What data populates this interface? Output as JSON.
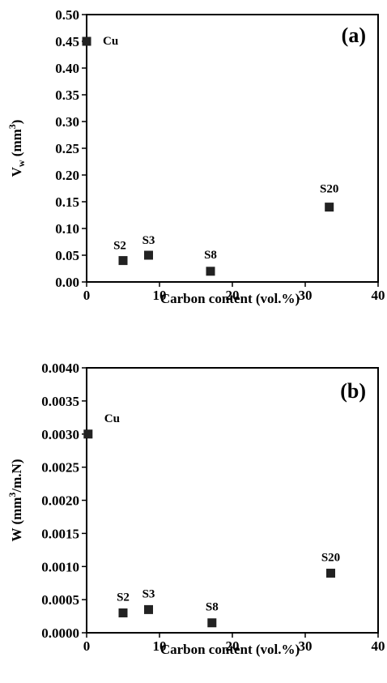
{
  "chart_data": [
    {
      "type": "scatter",
      "panel_label": "(a)",
      "xlabel": "Carbon content (vol.%)",
      "ylabel_main": "V",
      "ylabel_sub": "w",
      "ylabel_rest": " (mm",
      "ylabel_sup": "3",
      "ylabel_close": ")",
      "xlim": [
        0,
        40
      ],
      "ylim": [
        0,
        0.5
      ],
      "xticks": [
        "0",
        "10",
        "20",
        "30",
        "40"
      ],
      "yticks": [
        "0.00",
        "0.05",
        "0.10",
        "0.15",
        "0.20",
        "0.25",
        "0.30",
        "0.35",
        "0.40",
        "0.45",
        "0.50"
      ],
      "marker_color": "#222222",
      "points": [
        {
          "label": "Cu",
          "x": 0,
          "y": 0.45
        },
        {
          "label": "S2",
          "x": 5,
          "y": 0.04
        },
        {
          "label": "S3",
          "x": 8.5,
          "y": 0.05
        },
        {
          "label": "S8",
          "x": 17,
          "y": 0.02
        },
        {
          "label": "S20",
          "x": 33.3,
          "y": 0.14
        }
      ]
    },
    {
      "type": "scatter",
      "panel_label": "(b)",
      "xlabel": "Carbon content (vol.%)",
      "ylabel_main": "W (mm",
      "ylabel_sup": "3",
      "ylabel_close": "/m.N)",
      "xlim": [
        0,
        40
      ],
      "ylim": [
        0,
        0.004
      ],
      "xticks": [
        "0",
        "10",
        "20",
        "30",
        "40"
      ],
      "yticks": [
        "0.0000",
        "0.0005",
        "0.0010",
        "0.0015",
        "0.0020",
        "0.0025",
        "0.0030",
        "0.0035",
        "0.0040"
      ],
      "marker_color": "#222222",
      "points": [
        {
          "label": "Cu",
          "x": 0.2,
          "y": 0.003
        },
        {
          "label": "S2",
          "x": 5,
          "y": 0.0003
        },
        {
          "label": "S3",
          "x": 8.5,
          "y": 0.00035
        },
        {
          "label": "S8",
          "x": 17.2,
          "y": 0.00015
        },
        {
          "label": "S20",
          "x": 33.5,
          "y": 0.0009
        }
      ]
    }
  ]
}
